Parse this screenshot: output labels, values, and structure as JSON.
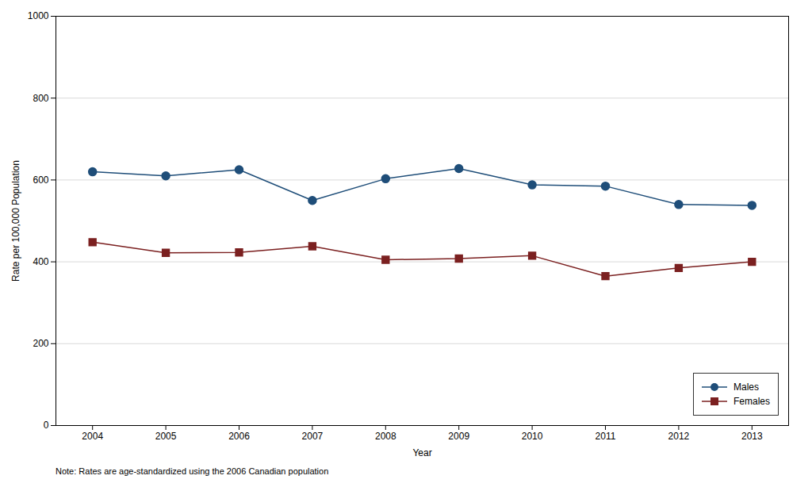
{
  "chart_data": {
    "type": "line",
    "x": [
      2004,
      2005,
      2006,
      2007,
      2008,
      2009,
      2010,
      2011,
      2012,
      2013
    ],
    "series": [
      {
        "name": "Males",
        "color": "#1f4e79",
        "marker": "circle",
        "values": [
          620,
          610,
          625,
          550,
          603,
          628,
          588,
          585,
          540,
          538
        ]
      },
      {
        "name": "Females",
        "color": "#7b2020",
        "marker": "square",
        "values": [
          448,
          422,
          423,
          438,
          405,
          408,
          415,
          365,
          385,
          400
        ]
      }
    ],
    "x_label": "Year",
    "y_label": "Rate per 100,000 Population",
    "xlim": [
      2003.5,
      2013.5
    ],
    "xticks": [
      2004,
      2005,
      2006,
      2007,
      2008,
      2009,
      2010,
      2011,
      2012,
      2013
    ],
    "ylim": [
      0,
      1000
    ],
    "yticks": [
      0,
      200,
      400,
      600,
      800,
      1000
    ],
    "grid": true,
    "legend": "lower right",
    "note": "Note: Rates are age-standardized using the 2006 Canadian population"
  }
}
